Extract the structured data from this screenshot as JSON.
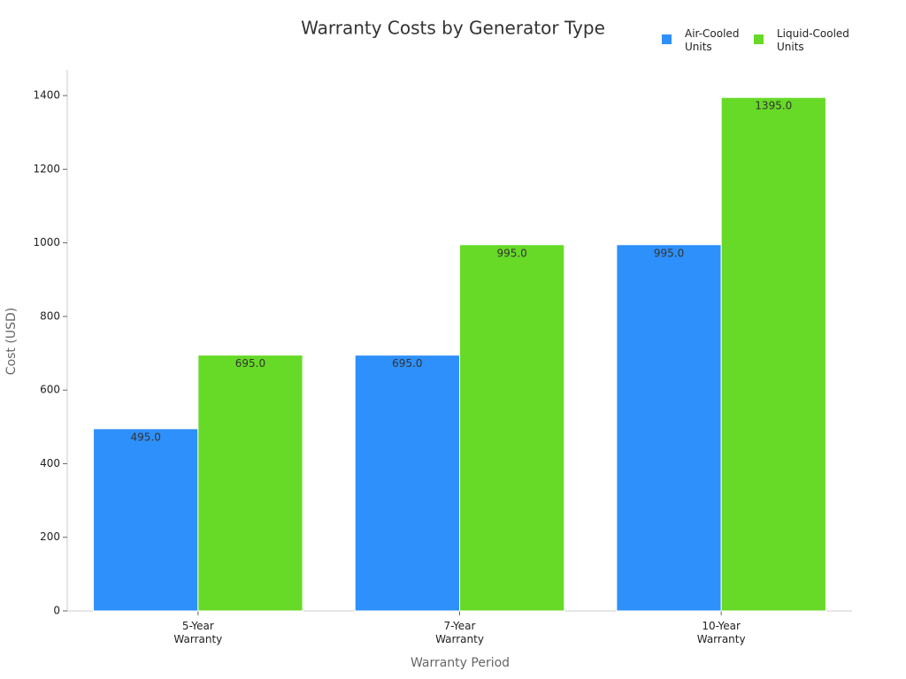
{
  "chart_data": {
    "type": "bar",
    "title": "Warranty Costs by Generator Type",
    "x_label": "Warranty Period",
    "y_label": "Cost (USD)",
    "categories": [
      "5-Year Warranty",
      "7-Year Warranty",
      "10-Year Warranty"
    ],
    "series": [
      {
        "name": "Air-Cooled Units",
        "color": "#2e90fa",
        "values": [
          495,
          695,
          995
        ],
        "value_labels": [
          "495.0",
          "695.0",
          "995.0"
        ]
      },
      {
        "name": "Liquid-Cooled Units",
        "color": "#66da26",
        "values": [
          695,
          995,
          1395
        ],
        "value_labels": [
          "695.0",
          "995.0",
          "1395.0"
        ]
      }
    ],
    "ylim": [
      0,
      1470
    ],
    "yticks": [
      0,
      200,
      400,
      600,
      800,
      1000,
      1200,
      1400
    ],
    "legend": "top-right",
    "grid": false
  }
}
